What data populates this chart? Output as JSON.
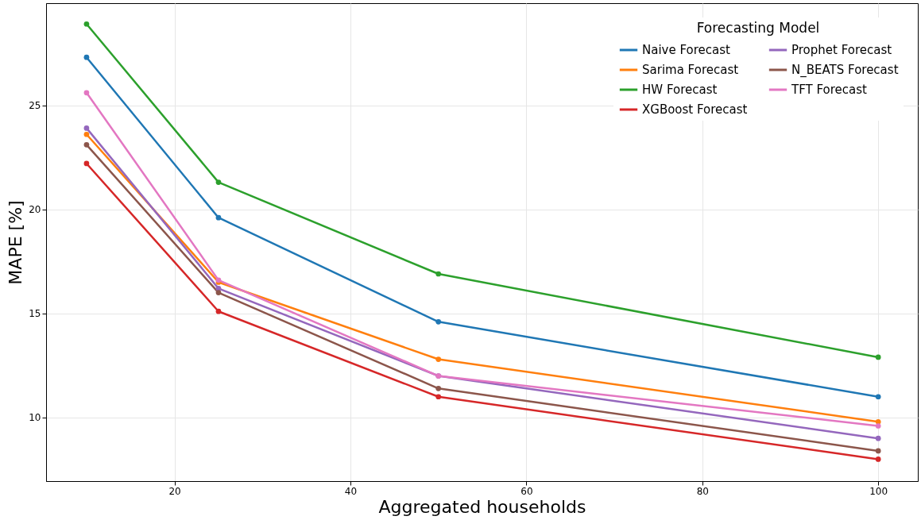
{
  "chart_data": {
    "type": "line",
    "xlabel": "Aggregated households",
    "ylabel": "MAPE [%]",
    "legend_title": "Forecasting Model",
    "x": [
      10,
      25,
      50,
      100
    ],
    "series": [
      {
        "name": "Naive Forecast",
        "color": "#1f77b4",
        "values": [
          27.3,
          19.6,
          14.6,
          11.0
        ]
      },
      {
        "name": "Sarima Forecast",
        "color": "#ff7f0e",
        "values": [
          23.6,
          16.5,
          12.8,
          9.8
        ]
      },
      {
        "name": "HW Forecast",
        "color": "#2ca02c",
        "values": [
          28.9,
          21.3,
          16.9,
          12.9
        ]
      },
      {
        "name": "XGBoost Forecast",
        "color": "#d62728",
        "values": [
          22.2,
          15.1,
          11.0,
          8.0
        ]
      },
      {
        "name": "Prophet Forecast",
        "color": "#9467bd",
        "values": [
          23.9,
          16.2,
          12.0,
          9.0
        ]
      },
      {
        "name": "N_BEATS Forecast",
        "color": "#8c564b",
        "values": [
          23.1,
          16.0,
          11.4,
          8.4
        ]
      },
      {
        "name": "TFT Forecast",
        "color": "#e377c2",
        "values": [
          25.6,
          16.6,
          12.0,
          9.6
        ]
      }
    ],
    "xlim": [
      5.4,
      104.5
    ],
    "ylim": [
      6.95,
      29.9
    ],
    "xticks": [
      20,
      40,
      60,
      80,
      100
    ],
    "yticks": [
      10,
      15,
      20,
      25
    ],
    "grid": true,
    "legend": "top right",
    "marker": "circle",
    "line_style": "solid"
  }
}
